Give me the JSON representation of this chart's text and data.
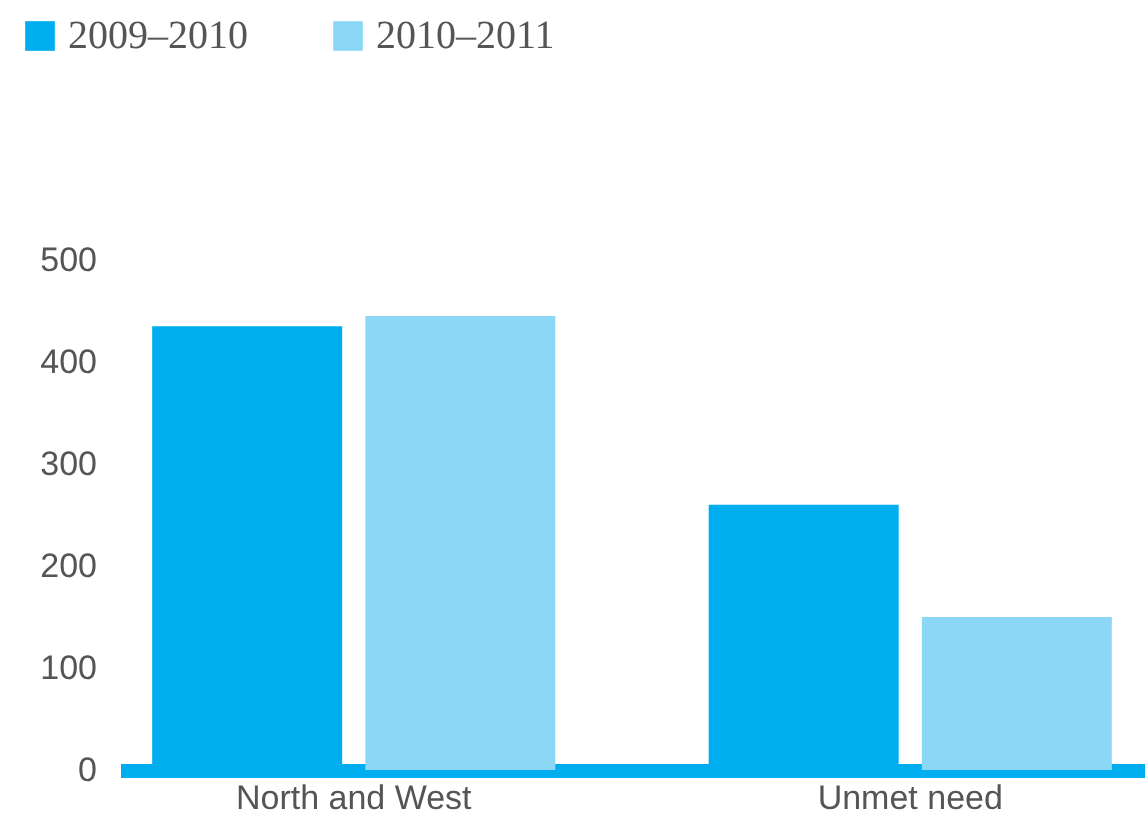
{
  "chart_data": {
    "type": "bar",
    "categories": [
      "North and West",
      "Unmet need"
    ],
    "series": [
      {
        "name": "2009–2010",
        "color": "#00aeef",
        "values": [
          435,
          260
        ]
      },
      {
        "name": "2010–2011",
        "color": "#8dd7f6",
        "values": [
          445,
          150
        ]
      }
    ],
    "ylim": [
      0,
      500
    ],
    "yticks": [
      0,
      100,
      200,
      300,
      400,
      500
    ],
    "grid": false,
    "legend": "top left"
  }
}
